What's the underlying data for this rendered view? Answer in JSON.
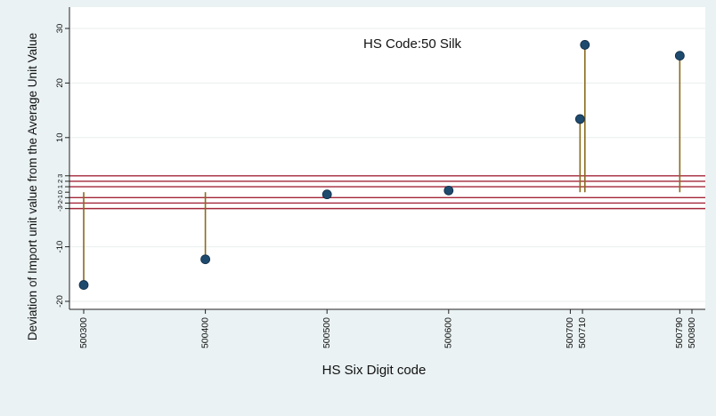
{
  "chart_data": {
    "type": "scatter",
    "style": "drop-line",
    "title": "HS Code:50 Silk",
    "xlabel": "HS Six Digit code",
    "ylabel": "Deviation of Import unit value from the Average Unit Value",
    "x_ticks": [
      "500300",
      "500400",
      "500500",
      "500600",
      "500700",
      "500710",
      "500790",
      "500800"
    ],
    "x_tick_values": [
      500300,
      500400,
      500500,
      500600,
      500700,
      500710,
      500790,
      500800
    ],
    "xlim": [
      500300,
      500800
    ],
    "y_ticks": [
      -20,
      -10,
      -3,
      -2,
      -1,
      0,
      1,
      2,
      3,
      10,
      20,
      30
    ],
    "ylim": [
      -22,
      31
    ],
    "baseline": 0,
    "reference_lines": [
      -3,
      -2,
      -1,
      1,
      2,
      3
    ],
    "points": [
      {
        "x": 500300,
        "y": -17
      },
      {
        "x": 500400,
        "y": -12.3
      },
      {
        "x": 500500,
        "y": -0.4
      },
      {
        "x": 500600,
        "y": 0.3
      },
      {
        "x": 500708,
        "y": 13.4
      },
      {
        "x": 500712,
        "y": 27
      },
      {
        "x": 500790,
        "y": 25
      }
    ],
    "colors": {
      "marker": "#1e4a6e",
      "drop_line": "#8b6a1e",
      "reference_line": "#a32638",
      "plot_background": "#ffffff",
      "outer_background": "#eaf2f3",
      "grid": "#e8eeee"
    },
    "grid": true
  }
}
